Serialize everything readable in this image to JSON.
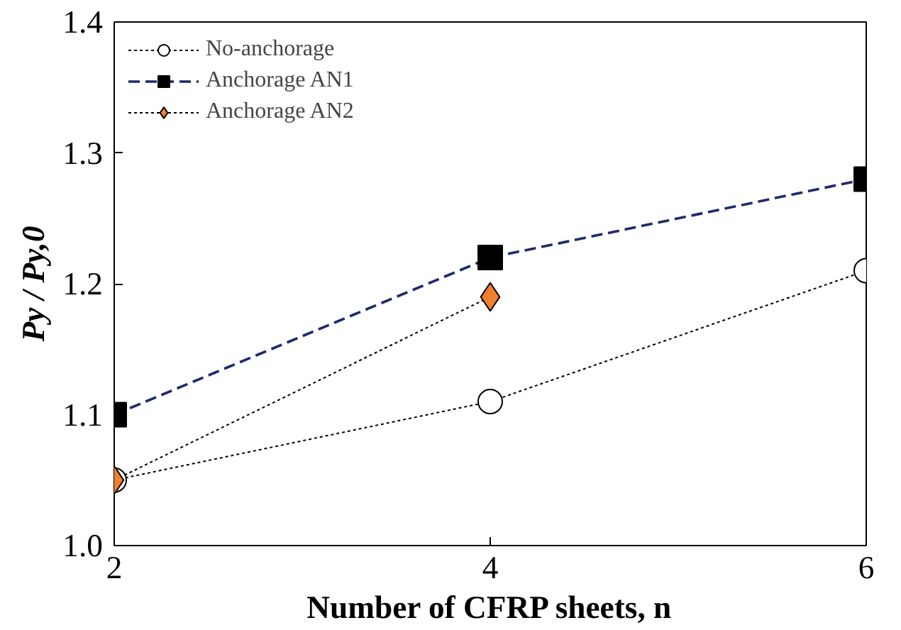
{
  "chart_data": {
    "type": "line",
    "xlabel": "Number of CFRP sheets, n",
    "ylabel": "Py / Py,0",
    "x": [
      2,
      4,
      6
    ],
    "series": [
      {
        "name": "No-anchorage",
        "color": "#ffffff",
        "values": [
          1.05,
          1.11,
          1.21
        ],
        "marker": "circle",
        "line_style": "dotted"
      },
      {
        "name": "Anchorage AN1",
        "color": "#000000",
        "values": [
          1.1,
          1.22,
          1.28
        ],
        "marker": "square",
        "line_style": "dashed"
      },
      {
        "name": "Anchorage AN2",
        "color": "#f07f2e",
        "values": [
          1.05,
          1.19,
          null
        ],
        "marker": "diamond",
        "line_style": "dotted"
      }
    ],
    "xlim": [
      2,
      6
    ],
    "xticks": [
      2,
      4,
      6
    ],
    "ylim": [
      1.0,
      1.4
    ],
    "yticks": [
      {
        "value": 1.0,
        "label": "1.0"
      },
      {
        "value": 1.1,
        "label": "1.1"
      },
      {
        "value": 1.2,
        "label": "1.2"
      },
      {
        "value": 1.3,
        "label": "1.3"
      },
      {
        "value": 1.4,
        "label": "1.4"
      }
    ],
    "legend": "top left",
    "grid": false
  }
}
